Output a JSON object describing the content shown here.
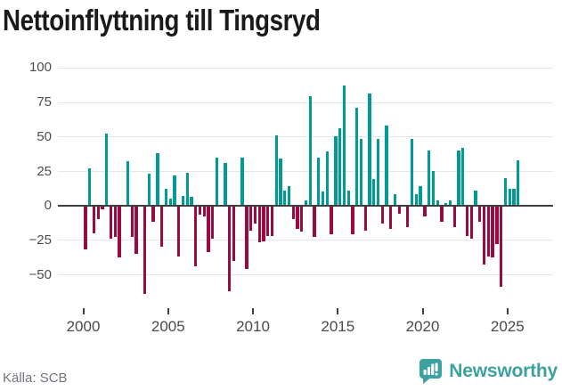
{
  "title": "Nettoinflyttning till Tingsryd",
  "source": {
    "label": "Källa: SCB"
  },
  "branding": {
    "name": "Newsworthy",
    "icon": "newsworthy-speech-bubble-chart-icon"
  },
  "colors": {
    "positive": "#009b96",
    "negative": "#9c0a42",
    "grid": "#e6e6e6",
    "zero_line": "#3f3f3f",
    "title_text": "#1a1a1a",
    "axis_text": "#4a4a4a",
    "source_text": "#73737d",
    "brand": "#3ba1a1",
    "background": "#ffffff"
  },
  "chart_data": {
    "type": "bar",
    "title": "Nettoinflyttning till Tingsryd",
    "xlabel": "",
    "ylabel": "",
    "grid": true,
    "legend": "none",
    "ylim": [
      -70,
      105
    ],
    "y_ticks": [
      100,
      75,
      50,
      25,
      0,
      -25,
      -50
    ],
    "y_tick_labels": [
      "100",
      "75",
      "50",
      "25",
      "0",
      "−25",
      "−50"
    ],
    "x_tick_labels": [
      "2000",
      "2005",
      "2010",
      "2015",
      "2020",
      "2025"
    ],
    "periods": [
      "2000Q1",
      "2000Q2",
      "2000Q3",
      "2000Q4",
      "2001Q1",
      "2001Q2",
      "2001Q3",
      "2001Q4",
      "2002Q1",
      "2002Q2",
      "2002Q3",
      "2002Q4",
      "2003Q1",
      "2003Q2",
      "2003Q3",
      "2003Q4",
      "2004Q1",
      "2004Q2",
      "2004Q3",
      "2004Q4",
      "2005Q1",
      "2005Q2",
      "2005Q3",
      "2005Q4",
      "2006Q1",
      "2006Q2",
      "2006Q3",
      "2006Q4",
      "2007Q1",
      "2007Q2",
      "2007Q3",
      "2007Q4",
      "2008Q1",
      "2008Q2",
      "2008Q3",
      "2008Q4",
      "2009Q1",
      "2009Q2",
      "2009Q3",
      "2009Q4",
      "2010Q1",
      "2010Q2",
      "2010Q3",
      "2010Q4",
      "2011Q1",
      "2011Q2",
      "2011Q3",
      "2011Q4",
      "2012Q1",
      "2012Q2",
      "2012Q3",
      "2012Q4",
      "2013Q1",
      "2013Q2",
      "2013Q3",
      "2013Q4",
      "2014Q1",
      "2014Q2",
      "2014Q3",
      "2014Q4",
      "2015Q1",
      "2015Q2",
      "2015Q3",
      "2015Q4",
      "2016Q1",
      "2016Q2",
      "2016Q3",
      "2016Q4",
      "2017Q1",
      "2017Q2",
      "2017Q3",
      "2017Q4",
      "2018Q1",
      "2018Q2",
      "2018Q3",
      "2018Q4",
      "2019Q1",
      "2019Q2",
      "2019Q3",
      "2019Q4",
      "2020Q1",
      "2020Q2",
      "2020Q3",
      "2020Q4",
      "2021Q1",
      "2021Q2",
      "2021Q3",
      "2021Q4",
      "2022Q1",
      "2022Q2",
      "2022Q3",
      "2022Q4",
      "2023Q1",
      "2023Q2",
      "2023Q3",
      "2023Q4",
      "2024Q1",
      "2024Q2",
      "2024Q3",
      "2024Q4",
      "2025Q1",
      "2025Q2",
      "2025Q3"
    ],
    "values": [
      -32,
      27,
      -20,
      -10,
      -3,
      52,
      -24,
      -23,
      -38,
      0,
      32,
      -23,
      -35,
      0,
      -64,
      23,
      -12,
      38,
      -30,
      12,
      5,
      22,
      -37,
      7,
      24,
      6,
      -44,
      -7,
      -8,
      -34,
      -24,
      35,
      0,
      31,
      -62,
      -40,
      0,
      35,
      -46,
      -18,
      -13,
      -27,
      -26,
      -22,
      -22,
      51,
      34,
      11,
      14,
      -10,
      -17,
      -19,
      4,
      79,
      -23,
      35,
      10,
      39,
      -21,
      50,
      56,
      87,
      11,
      -21,
      71,
      48,
      -18,
      81,
      19,
      48,
      -13,
      58,
      -17,
      8,
      -6,
      0,
      -16,
      48,
      8,
      14,
      -8,
      40,
      25,
      4,
      -12,
      2,
      4,
      -16,
      40,
      42,
      -22,
      -24,
      11,
      -12,
      -43,
      -37,
      -38,
      -28,
      -59,
      20,
      12,
      12,
      33
    ]
  }
}
